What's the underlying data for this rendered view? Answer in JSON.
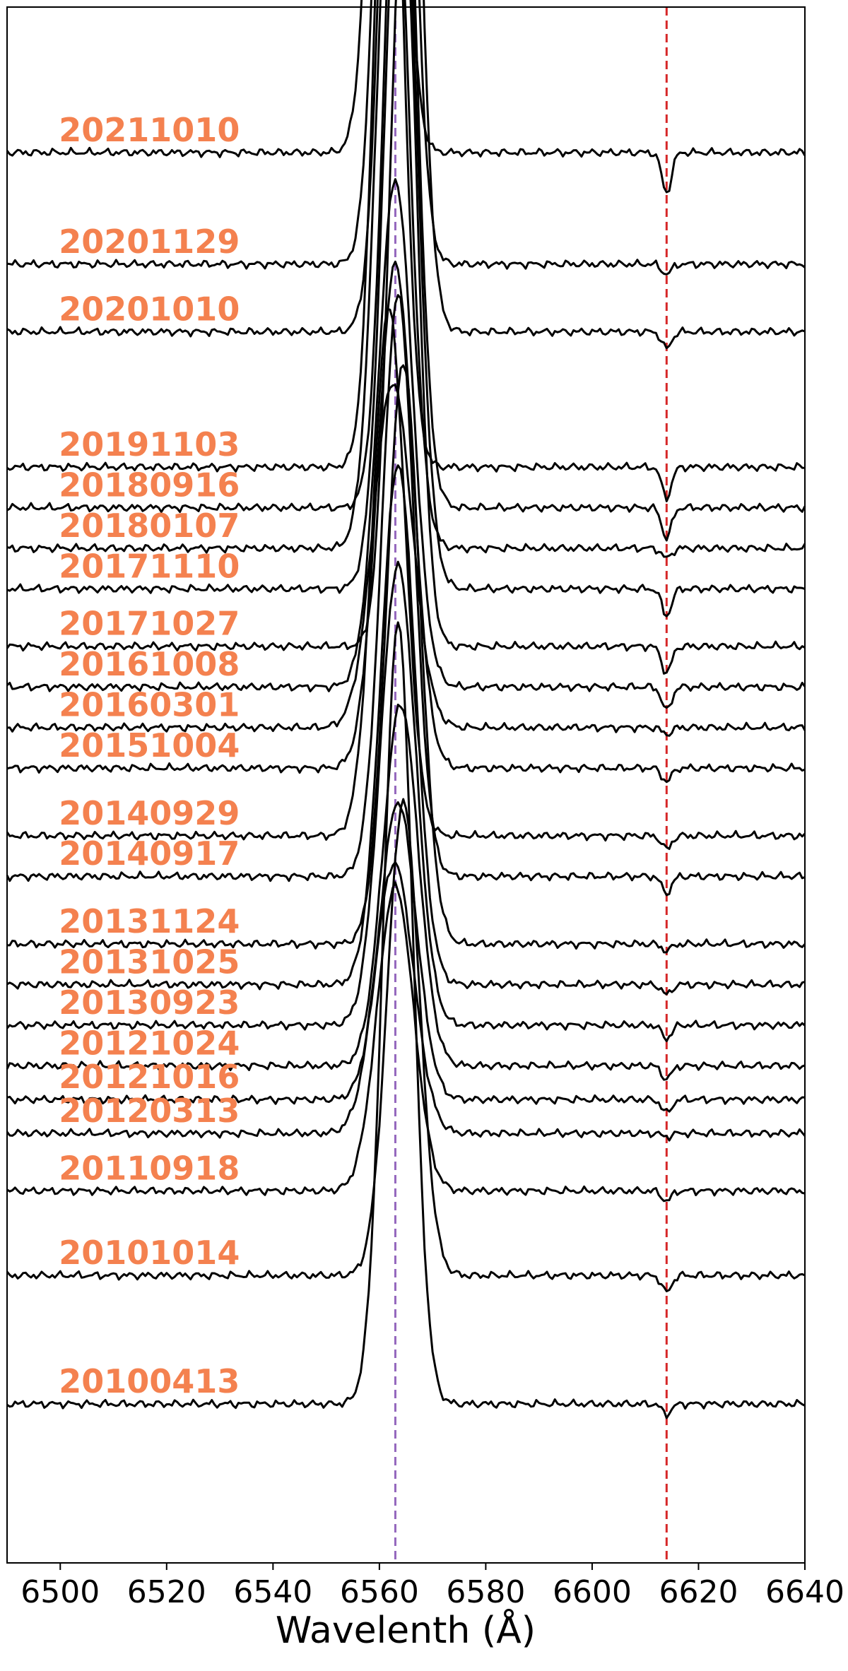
{
  "chart_data": {
    "type": "line",
    "title": "",
    "xlabel": "Wavelenth (Å)",
    "ylabel": "",
    "xlim": [
      6490,
      6640
    ],
    "xticks": [
      6500,
      6520,
      6540,
      6560,
      6580,
      6600,
      6620,
      6640
    ],
    "yticks_visible": false,
    "grid": false,
    "reference_lines": [
      {
        "x": 6563,
        "color": "#9467bd",
        "style": "dashed"
      },
      {
        "x": 6614,
        "color": "#d62728",
        "style": "dashed"
      }
    ],
    "label_color": "#f4814f",
    "line_color": "#000000",
    "series": [
      {
        "name": "20211010",
        "baseline": 3.62,
        "peak": 6561.5,
        "amp": 2.25,
        "width": 2.7,
        "dip": 0.12
      },
      {
        "name": "20201129",
        "baseline": 3.29,
        "peak": 6563.0,
        "amp": 2.9,
        "width": 2.8,
        "dip": 0.03
      },
      {
        "name": "20201010",
        "baseline": 3.09,
        "peak": 6564.0,
        "amp": 3.0,
        "width": 2.9,
        "dip": 0.05
      },
      {
        "name": "20191103",
        "baseline": 2.69,
        "peak": 6561.8,
        "amp": 2.3,
        "width": 2.6,
        "dip": 0.09
      },
      {
        "name": "20180916",
        "baseline": 2.57,
        "peak": 6564.0,
        "amp": 2.4,
        "width": 2.8,
        "dip": 0.09
      },
      {
        "name": "20180107",
        "baseline": 2.45,
        "peak": 6562.5,
        "amp": 2.18,
        "width": 3.0,
        "dip": 0.03
      },
      {
        "name": "20171110",
        "baseline": 2.33,
        "peak": 6564.0,
        "amp": 2.3,
        "width": 3.0,
        "dip": 0.08
      },
      {
        "name": "20171027",
        "baseline": 2.16,
        "peak": 6564.5,
        "amp": 2.2,
        "width": 2.6,
        "dip": 0.08
      },
      {
        "name": "20161008",
        "baseline": 2.04,
        "peak": 6563.0,
        "amp": 1.5,
        "width": 3.2,
        "dip": 0.07
      },
      {
        "name": "20160301",
        "baseline": 1.92,
        "peak": 6562.5,
        "amp": 1.02,
        "width": 3.6,
        "dip": 0.02
      },
      {
        "name": "20151004",
        "baseline": 1.8,
        "peak": 6563.0,
        "amp": 1.49,
        "width": 3.3,
        "dip": 0.04
      },
      {
        "name": "20140929",
        "baseline": 1.6,
        "peak": 6561.8,
        "amp": 1.56,
        "width": 3.0,
        "dip": 0.04
      },
      {
        "name": "20140917",
        "baseline": 1.48,
        "peak": 6563.5,
        "amp": 1.72,
        "width": 3.0,
        "dip": 0.05
      },
      {
        "name": "20131124",
        "baseline": 1.28,
        "peak": 6564.5,
        "amp": 1.72,
        "width": 3.1,
        "dip": 0.02
      },
      {
        "name": "20131025",
        "baseline": 1.16,
        "peak": 6563.5,
        "amp": 1.54,
        "width": 3.2,
        "dip": 0.03
      },
      {
        "name": "20130923",
        "baseline": 1.04,
        "peak": 6563.5,
        "amp": 1.36,
        "width": 3.3,
        "dip": 0.04
      },
      {
        "name": "20121024",
        "baseline": 0.92,
        "peak": 6564.0,
        "amp": 1.07,
        "width": 3.3,
        "dip": 0.04
      },
      {
        "name": "20121016",
        "baseline": 0.82,
        "peak": 6563.5,
        "amp": 0.88,
        "width": 3.4,
        "dip": 0.04
      },
      {
        "name": "20120313",
        "baseline": 0.72,
        "peak": 6562.8,
        "amp": 0.8,
        "width": 3.6,
        "dip": 0.01
      },
      {
        "name": "20110918",
        "baseline": 0.55,
        "peak": 6563.0,
        "amp": 0.9,
        "width": 3.4,
        "dip": 0.03
      },
      {
        "name": "20101014",
        "baseline": 0.3,
        "peak": 6564.5,
        "amp": 1.4,
        "width": 3.0,
        "dip": 0.05
      },
      {
        "name": "20100413",
        "baseline": -0.08,
        "peak": 6563.5,
        "amp": 2.31,
        "width": 2.8,
        "dip": 0.03
      }
    ]
  }
}
